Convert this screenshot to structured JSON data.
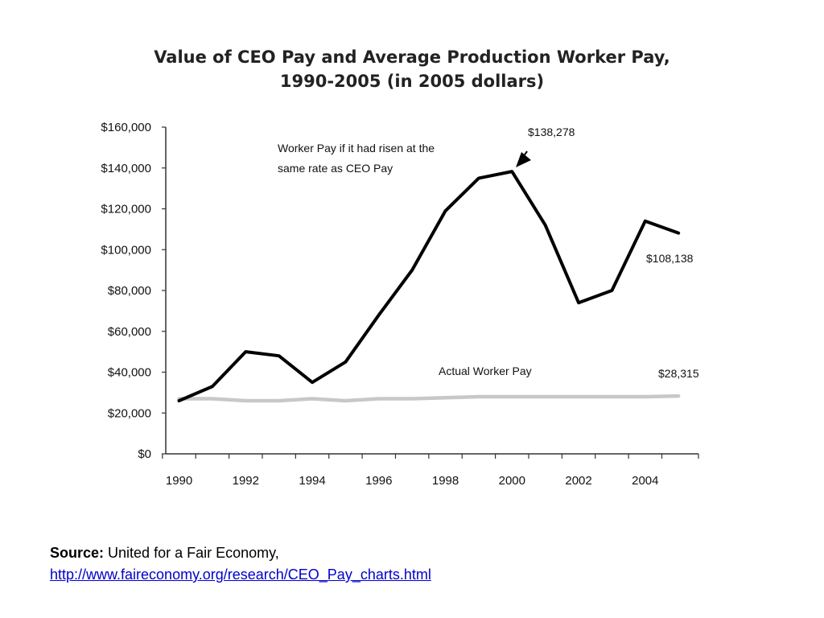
{
  "chart_data": {
    "type": "line",
    "title_lines": [
      "Value of CEO Pay and Average Production Worker Pay,",
      "1990-2005 (in 2005 dollars)"
    ],
    "x": [
      1990,
      1991,
      1992,
      1993,
      1994,
      1995,
      1996,
      1997,
      1998,
      1999,
      2000,
      2001,
      2002,
      2003,
      2004,
      2005
    ],
    "xticks": [
      "1990",
      "1992",
      "1994",
      "1996",
      "1998",
      "2000",
      "2002",
      "2004"
    ],
    "yticks": [
      "$0",
      "$20,000",
      "$40,000",
      "$60,000",
      "$80,000",
      "$100,000",
      "$120,000",
      "$140,000",
      "$160,000"
    ],
    "ylim": [
      0,
      160000
    ],
    "xlim": [
      1989.6,
      2005.6
    ],
    "grid": false,
    "series": [
      {
        "name": "Worker Pay if it had risen at the same rate as CEO Pay",
        "color": "#000000",
        "values": [
          26000,
          33000,
          50000,
          48000,
          35000,
          45000,
          68000,
          90000,
          119000,
          135000,
          138278,
          112000,
          74000,
          80000,
          114000,
          108138
        ]
      },
      {
        "name": "Actual Worker Pay",
        "color": "#c8c8c8",
        "values": [
          27000,
          27000,
          26000,
          26000,
          27000,
          26000,
          27000,
          27000,
          27500,
          28000,
          28000,
          28000,
          28000,
          28000,
          28000,
          28315
        ]
      }
    ],
    "annotations": {
      "ceo_label_lines": [
        "Worker Pay if it had risen at the",
        "same rate as CEO Pay"
      ],
      "actual_label": "Actual Worker Pay",
      "peak_value": "$138,278",
      "end_value_ceo": "$108,138",
      "end_value_actual": "$28,315"
    }
  },
  "source": {
    "label": "Source:",
    "text": " United for a Fair Economy,",
    "url": "http://www.faireconomy.org/research/CEO_Pay_charts.html"
  }
}
